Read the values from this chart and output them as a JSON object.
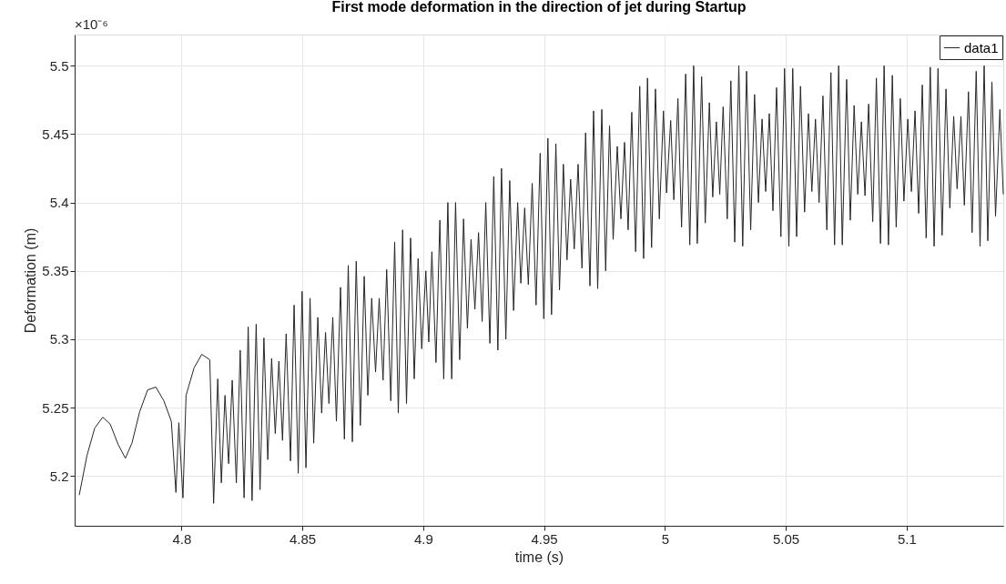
{
  "chart_data": {
    "type": "line",
    "title": "First mode deformation in the direction of jet during Startup",
    "xlabel": "time (s)",
    "ylabel": "Deformation (m)",
    "annotations": [
      "×10⁻⁶"
    ],
    "xlim": [
      4.7558,
      5.14
    ],
    "ylim": [
      5.1636,
      5.5228
    ],
    "xticks": [
      4.8,
      4.85,
      4.9,
      4.95,
      5,
      5.05,
      5.1
    ],
    "yticks": [
      5.2,
      5.25,
      5.3,
      5.35,
      5.4,
      5.45,
      5.5
    ],
    "grid": true,
    "legend": "top right",
    "line_style": "solid",
    "x": [
      4.7577,
      4.7593,
      4.7609,
      4.7625,
      4.7641,
      4.7657,
      4.7674,
      4.769,
      4.7705,
      4.7721,
      4.7738,
      4.7753,
      4.7768,
      4.7781,
      4.7795,
      4.7811,
      4.7827,
      4.7843,
      4.786,
      4.7877,
      4.7894,
      4.791,
      4.7927,
      4.7942,
      4.7958,
      4.7977,
      4.7989,
      4.8006,
      4.8019,
      4.8035,
      4.8052,
      4.8068,
      4.8084,
      4.81,
      4.8117,
      4.8133,
      4.815,
      4.8165,
      4.818,
      4.8195,
      4.821,
      4.8227,
      4.8243,
      4.8259,
      4.8276,
      4.8292,
      4.8309,
      4.8325,
      4.8341,
      4.8357,
      4.8373,
      4.8388,
      4.8403,
      4.8418,
      4.8433,
      4.8451,
      4.8466,
      4.8483,
      4.8499,
      4.8515,
      4.8532,
      4.8547,
      4.8564,
      4.858,
      4.8596,
      4.861,
      4.8626,
      4.8641,
      4.8658,
      4.8674,
      4.869,
      4.8707,
      4.8723,
      4.874,
      4.8756,
      4.8771,
      4.8787,
      4.8803,
      4.8818,
      4.8834,
      4.8849,
      4.8866,
      4.8882,
      4.8897,
      4.8915,
      4.8931,
      4.8948,
      4.8963,
      4.8979,
      4.8994,
      4.9011,
      4.9023,
      4.9036,
      4.9053,
      4.9069,
      4.9085,
      4.9102,
      4.9118,
      4.9134,
      4.9151,
      4.9167,
      4.9183,
      4.9198,
      4.9214,
      4.9229,
      4.9244,
      4.9259,
      4.9276,
      4.9292,
      4.9309,
      4.9324,
      4.9342,
      4.9358,
      4.9374,
      4.9391,
      4.9404,
      4.942,
      4.9435,
      4.9451,
      4.9467,
      4.9484,
      4.9499,
      4.9516,
      4.9531,
      4.9549,
      4.9564,
      4.958,
      4.9595,
      4.961,
      4.9625,
      4.9641,
      4.9657,
      4.9672,
      4.969,
      4.9705,
      4.9722,
      4.9739,
      4.9755,
      4.9771,
      4.9786,
      4.9803,
      4.9818,
      4.9833,
      4.9848,
      4.9863,
      4.9879,
      4.9896,
      4.9912,
      4.9928,
      4.9945,
      4.9961,
      4.9977,
      4.9994,
      5.0007,
      5.0024,
      5.0037,
      5.0054,
      5.0069,
      5.0086,
      5.0103,
      5.0119,
      5.0134,
      5.0152,
      5.0167,
      5.0184,
      5.0198,
      5.0213,
      5.0227,
      5.0241,
      5.0258,
      5.0273,
      5.0289,
      5.0306,
      5.0322,
      5.0338,
      5.0355,
      5.0371,
      5.0387,
      5.0402,
      5.0417,
      5.0432,
      5.0447,
      5.0462,
      5.048,
      5.0495,
      5.0513,
      5.0529,
      5.0545,
      5.0561,
      5.0578,
      5.0594,
      5.0608,
      5.0623,
      5.0638,
      5.0654,
      5.067,
      5.0687,
      5.0702,
      5.0719,
      5.0734,
      5.0752,
      5.0767,
      5.0783,
      5.0798,
      5.0813,
      5.0828,
      5.0843,
      5.086,
      5.0875,
      5.0892,
      5.0907,
      5.0925,
      5.0941,
      5.0957,
      5.0974,
      5.0989,
      5.1005,
      5.102,
      5.1035,
      5.105,
      5.1065,
      5.1081,
      5.1098,
      5.1114,
      5.113,
      5.1147,
      5.1163,
      5.1179,
      5.1195,
      5.1209,
      5.1225,
      5.1239,
      5.1256,
      5.1271,
      5.1288,
      5.1304,
      5.1321,
      5.1336,
      5.1353,
      5.1368,
      5.1386,
      5.14
    ],
    "series": [
      {
        "name": "data1",
        "color": "#262626",
        "values": [
          5.186,
          null,
          5.215,
          null,
          5.235,
          null,
          5.243,
          null,
          5.238,
          null,
          5.223,
          null,
          5.213,
          null,
          5.224,
          null,
          5.247,
          null,
          5.263,
          null,
          5.265,
          null,
          5.255,
          null,
          5.24,
          5.188,
          5.239,
          5.184,
          5.259,
          null,
          5.279,
          null,
          5.289,
          null,
          5.285,
          5.18,
          5.271,
          5.195,
          5.259,
          5.209,
          5.27,
          5.195,
          5.292,
          5.184,
          5.309,
          5.182,
          5.311,
          5.19,
          5.301,
          5.212,
          5.286,
          5.231,
          5.284,
          5.226,
          5.304,
          5.211,
          5.325,
          5.202,
          5.335,
          5.206,
          5.33,
          5.224,
          5.316,
          5.246,
          5.305,
          5.253,
          5.316,
          5.24,
          5.338,
          5.227,
          5.354,
          5.225,
          5.357,
          5.237,
          5.346,
          5.259,
          5.33,
          5.276,
          5.33,
          5.27,
          5.351,
          5.255,
          5.371,
          5.246,
          5.38,
          5.253,
          5.374,
          5.271,
          5.359,
          5.293,
          5.35,
          5.298,
          5.364,
          5.283,
          5.387,
          5.271,
          5.4,
          5.271,
          5.4,
          5.285,
          5.388,
          5.308,
          5.373,
          5.322,
          5.378,
          5.313,
          5.4,
          5.297,
          5.419,
          5.292,
          5.425,
          5.3,
          5.416,
          5.321,
          5.4,
          5.341,
          5.396,
          5.34,
          5.414,
          5.325,
          5.436,
          5.315,
          5.447,
          5.318,
          5.443,
          5.336,
          5.428,
          5.358,
          5.417,
          5.366,
          5.428,
          5.352,
          5.451,
          5.339,
          5.467,
          5.337,
          5.468,
          5.35,
          5.456,
          5.373,
          5.441,
          5.388,
          5.444,
          5.38,
          5.466,
          5.364,
          5.485,
          5.359,
          5.491,
          5.367,
          5.483,
          5.388,
          5.467,
          5.407,
          5.46,
          5.402,
          5.476,
          5.382,
          5.494,
          5.369,
          5.5,
          5.37,
          5.492,
          5.385,
          5.473,
          5.404,
          5.459,
          5.406,
          5.47,
          5.388,
          5.489,
          5.371,
          5.5,
          5.368,
          5.496,
          5.38,
          5.479,
          5.4,
          5.461,
          5.408,
          5.465,
          5.394,
          5.484,
          5.375,
          5.498,
          5.368,
          5.498,
          5.375,
          5.485,
          5.393,
          5.465,
          5.408,
          5.461,
          5.4,
          5.478,
          5.38,
          5.495,
          5.369,
          5.5,
          5.369,
          5.49,
          5.387,
          5.471,
          5.406,
          5.459,
          5.405,
          5.472,
          5.386,
          5.491,
          5.37,
          5.5,
          5.369,
          5.493,
          5.382,
          5.476,
          5.401,
          5.461,
          5.408,
          5.467,
          5.392,
          5.486,
          5.374,
          5.499,
          5.368,
          5.498,
          5.376,
          5.483,
          5.396,
          5.463,
          5.41,
          5.463,
          5.398,
          5.481,
          5.378,
          5.496,
          5.368,
          5.5,
          5.372,
          5.488,
          5.39,
          5.468,
          5.406
        ]
      }
    ]
  }
}
